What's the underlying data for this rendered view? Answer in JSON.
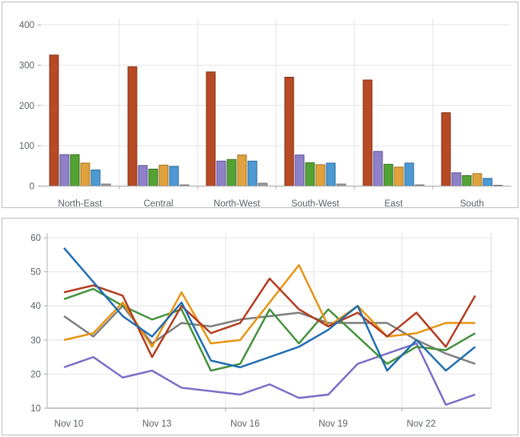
{
  "page": {
    "background": "#ffffff",
    "panel_border": "#bdbdbd",
    "grid_color": "#e4e4e4",
    "axis_color": "#a8a8a8",
    "label_color": "#5b6269"
  },
  "chart_data": [
    {
      "type": "bar",
      "title": "",
      "categories": [
        "North-East",
        "Central",
        "North-West",
        "South-West",
        "East",
        "South"
      ],
      "series": [
        {
          "name": "series-red",
          "fill": "#b84a26",
          "stroke": "#7d3115",
          "values": [
            325,
            296,
            283,
            270,
            263,
            182
          ]
        },
        {
          "name": "series-purple",
          "fill": "#8f81c7",
          "stroke": "#5d4f9e",
          "values": [
            78,
            51,
            62,
            77,
            86,
            33
          ]
        },
        {
          "name": "series-green",
          "fill": "#53a234",
          "stroke": "#356f1d",
          "values": [
            78,
            42,
            66,
            58,
            54,
            26
          ]
        },
        {
          "name": "series-orange",
          "fill": "#e1a23d",
          "stroke": "#a3731c",
          "values": [
            57,
            52,
            77,
            53,
            47,
            31
          ]
        },
        {
          "name": "series-blue",
          "fill": "#4d99d4",
          "stroke": "#2a6b9f",
          "values": [
            40,
            49,
            62,
            57,
            57,
            19
          ]
        },
        {
          "name": "series-gray",
          "fill": "#9d9d9d",
          "stroke": "#6f6f6f",
          "values": [
            5,
            3,
            7,
            5,
            3,
            2
          ]
        }
      ],
      "ylim": [
        0,
        400
      ],
      "yticks": [
        0,
        100,
        200,
        300,
        400
      ],
      "grid": true,
      "legend": false
    },
    {
      "type": "line",
      "title": "",
      "num_points": 15,
      "x_ticks": [
        {
          "index": 0,
          "label": "Nov 10"
        },
        {
          "index": 3,
          "label": "Nov 13"
        },
        {
          "index": 6,
          "label": "Nov 16"
        },
        {
          "index": 9,
          "label": "Nov 19"
        },
        {
          "index": 12,
          "label": "Nov 22"
        }
      ],
      "series": [
        {
          "name": "series-gray",
          "color": "#7c7c7c",
          "values": [
            37,
            31,
            40,
            29,
            35,
            34,
            36,
            37,
            38,
            35,
            35,
            35,
            30,
            26,
            23
          ]
        },
        {
          "name": "series-purple",
          "color": "#7c6bc6",
          "values": [
            22,
            25,
            19,
            21,
            16,
            15,
            14,
            17,
            13,
            14,
            23,
            26,
            29,
            11,
            14
          ]
        },
        {
          "name": "series-green",
          "color": "#42913a",
          "values": [
            42,
            45,
            40,
            36,
            39,
            21,
            23,
            39,
            29,
            39,
            31,
            23,
            28,
            27,
            32
          ]
        },
        {
          "name": "series-orange",
          "color": "#e79310",
          "values": [
            30,
            32,
            41,
            28,
            44,
            29,
            30,
            41,
            52,
            34,
            40,
            31,
            32,
            35,
            35
          ]
        },
        {
          "name": "series-red",
          "color": "#b23a1e",
          "values": [
            44,
            46,
            43,
            25,
            40,
            32,
            35,
            48,
            39,
            34,
            38,
            31,
            38,
            28,
            43
          ]
        },
        {
          "name": "series-blue",
          "color": "#1e6cb0",
          "values": [
            57,
            47,
            37,
            31,
            41,
            24,
            22,
            25,
            28,
            33,
            40,
            21,
            30,
            21,
            28
          ]
        }
      ],
      "ylim": [
        10,
        60
      ],
      "yticks": [
        10,
        20,
        30,
        40,
        50,
        60
      ],
      "grid": true,
      "legend": false
    }
  ]
}
